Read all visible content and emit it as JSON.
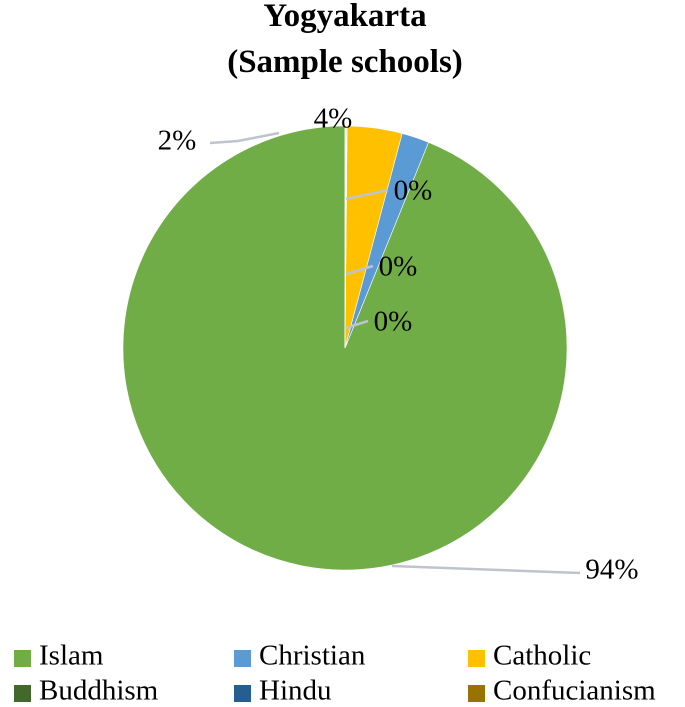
{
  "chart_data": {
    "type": "pie",
    "title": "Yogyakarta",
    "subtitle": "(Sample schools)",
    "slices": [
      {
        "name": "Islam",
        "value": 94,
        "label": "94%",
        "color": "#70ad47"
      },
      {
        "name": "Christian",
        "value": 2,
        "label": "2%",
        "color": "#5b9bd5"
      },
      {
        "name": "Catholic",
        "value": 4,
        "label": "4%",
        "color": "#ffc000"
      },
      {
        "name": "Buddhism",
        "value": 0.05,
        "label": "0%",
        "color": "#43682b"
      },
      {
        "name": "Hindu",
        "value": 0.05,
        "label": "0%",
        "color": "#255e91"
      },
      {
        "name": "Confucianism",
        "value": 0.05,
        "label": "0%",
        "color": "#997300"
      }
    ],
    "legend_position": "bottom",
    "start_angle_deg": 0,
    "direction": "counterclockwise-from-top"
  }
}
